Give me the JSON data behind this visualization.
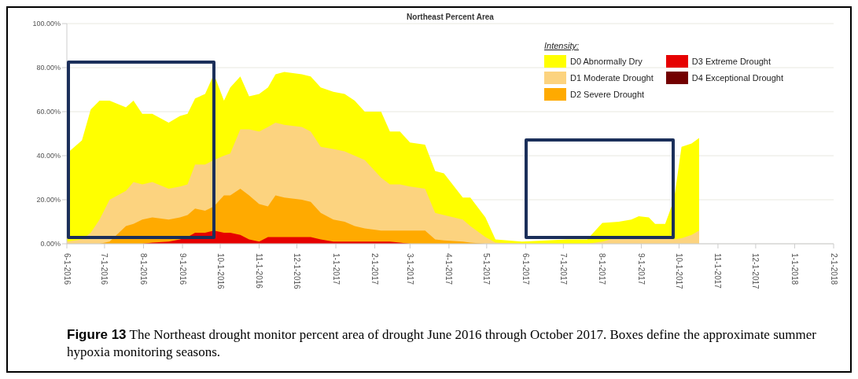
{
  "chart_data": {
    "type": "area",
    "title": "Northeast Percent Area",
    "x": [
      "2016-06-01",
      "2016-06-13",
      "2016-06-20",
      "2016-06-27",
      "2016-07-05",
      "2016-07-18",
      "2016-07-24",
      "2016-07-31",
      "2016-08-08",
      "2016-08-21",
      "2016-08-30",
      "2016-09-05",
      "2016-09-11",
      "2016-09-19",
      "2016-09-26",
      "2016-10-04",
      "2016-10-09",
      "2016-10-17",
      "2016-10-24",
      "2016-11-01",
      "2016-11-08",
      "2016-11-14",
      "2016-11-21",
      "2016-12-05",
      "2016-12-12",
      "2016-12-20",
      "2016-12-30",
      "2017-01-08",
      "2017-01-16",
      "2017-01-24",
      "2017-02-06",
      "2017-02-13",
      "2017-02-21",
      "2017-03-01",
      "2017-03-13",
      "2017-03-21",
      "2017-03-28",
      "2017-04-12",
      "2017-04-18",
      "2017-04-30",
      "2017-05-08",
      "2017-05-29",
      "2017-07-04",
      "2017-07-20",
      "2017-08-01",
      "2017-08-14",
      "2017-08-24",
      "2017-08-30",
      "2017-09-07",
      "2017-09-12",
      "2017-09-20",
      "2017-09-27",
      "2017-10-03",
      "2017-10-11",
      "2017-10-17"
    ],
    "series": [
      {
        "name": "D0 Abnormally Dry",
        "color": "#ffff00",
        "values": [
          41,
          47,
          61,
          65,
          65,
          62,
          65,
          59,
          59,
          55,
          58,
          59,
          66,
          68,
          77,
          65,
          71,
          76,
          67,
          68,
          71,
          77,
          78,
          77,
          76,
          71,
          69,
          68,
          65,
          60,
          60,
          51,
          51,
          46,
          45,
          33,
          32,
          21,
          21,
          12,
          2,
          1,
          2,
          2,
          9.5,
          10,
          11,
          12.5,
          12,
          9,
          9,
          20,
          44,
          45.5,
          48
        ]
      },
      {
        "name": "D1 Moderate Drought",
        "color": "#fcd37f",
        "values": [
          1,
          2,
          5,
          11,
          20,
          24,
          28,
          27,
          28,
          25,
          26,
          27,
          36,
          36,
          38,
          40,
          41,
          52,
          52,
          51,
          53,
          55,
          54,
          53,
          51,
          44,
          43,
          42,
          40,
          38,
          30,
          27,
          27,
          26,
          25,
          14,
          13,
          11,
          8,
          3,
          0.5,
          0,
          0,
          0,
          1,
          3,
          3,
          3,
          3,
          3,
          3,
          2,
          2.5,
          4,
          6
        ]
      },
      {
        "name": "D2 Severe Drought",
        "color": "#ffaa00",
        "values": [
          0,
          0,
          0,
          0,
          1,
          8,
          9,
          11,
          12,
          11,
          12,
          13,
          16,
          15,
          17,
          22,
          22,
          25,
          22,
          18,
          17,
          22,
          21,
          20,
          19,
          14,
          11,
          10,
          8,
          7,
          6,
          6,
          6,
          6,
          6,
          2,
          1.5,
          1,
          0.5,
          0,
          0,
          0,
          0,
          0,
          0,
          0,
          0,
          0,
          0,
          0,
          0,
          0,
          0,
          0,
          0
        ]
      },
      {
        "name": "D3 Extreme Drought",
        "color": "#e60000",
        "values": [
          0,
          0,
          0,
          0,
          0,
          0,
          0,
          0,
          0.5,
          1,
          2,
          3,
          5,
          5,
          6,
          5,
          5,
          4,
          2,
          1,
          3,
          3,
          3,
          3,
          3,
          2,
          1,
          1,
          1,
          1,
          1,
          1,
          0.5,
          0,
          0,
          0,
          0,
          0,
          0,
          0,
          0,
          0,
          0,
          0,
          0,
          0,
          0,
          0,
          0,
          0,
          0,
          0,
          0,
          0,
          0
        ]
      },
      {
        "name": "D4 Exceptional Drought",
        "color": "#730000",
        "values": [
          null,
          null,
          null,
          null,
          null,
          null,
          null,
          null,
          null,
          null,
          null,
          null,
          null,
          null,
          null,
          null,
          null,
          null,
          null,
          null,
          null,
          null,
          null,
          null,
          null,
          null,
          null,
          null,
          null,
          null,
          null,
          null,
          null,
          null,
          null,
          null,
          null,
          null,
          null,
          null,
          null,
          null,
          null,
          null,
          null,
          null,
          null,
          null,
          null,
          null,
          null,
          null,
          null,
          null,
          null
        ]
      }
    ],
    "xlim": [
      "2016-06-01",
      "2018-02-01"
    ],
    "xticks": [
      {
        "value": "2016-06-01",
        "label": "6-1-2016"
      },
      {
        "value": "2016-07-01",
        "label": "7-1-2016"
      },
      {
        "value": "2016-08-01",
        "label": "8-1-2016"
      },
      {
        "value": "2016-09-01",
        "label": "9-1-2016"
      },
      {
        "value": "2016-10-01",
        "label": "10-1-2016"
      },
      {
        "value": "2016-11-01",
        "label": "11-1-2016"
      },
      {
        "value": "2016-12-01",
        "label": "12-1-2016"
      },
      {
        "value": "2017-01-01",
        "label": "1-1-2017"
      },
      {
        "value": "2017-02-01",
        "label": "2-1-2017"
      },
      {
        "value": "2017-03-01",
        "label": "3-1-2017"
      },
      {
        "value": "2017-04-01",
        "label": "4-1-2017"
      },
      {
        "value": "2017-05-01",
        "label": "5-1-2017"
      },
      {
        "value": "2017-06-01",
        "label": "6-1-2017"
      },
      {
        "value": "2017-07-01",
        "label": "7-1-2017"
      },
      {
        "value": "2017-08-01",
        "label": "8-1-2017"
      },
      {
        "value": "2017-09-01",
        "label": "9-1-2017"
      },
      {
        "value": "2017-10-01",
        "label": "10-1-2017"
      },
      {
        "value": "2017-11-01",
        "label": "11-1-2017"
      },
      {
        "value": "2017-12-01",
        "label": "12-1-2017"
      },
      {
        "value": "2018-01-01",
        "label": "1-1-2018"
      },
      {
        "value": "2018-02-01",
        "label": "2-1-2018"
      }
    ],
    "ylim": [
      0,
      100
    ],
    "yticks": [
      {
        "value": 0,
        "label": "0.00%"
      },
      {
        "value": 20,
        "label": "20.00%"
      },
      {
        "value": 40,
        "label": "40.00%"
      },
      {
        "value": 60,
        "label": "60.00%"
      },
      {
        "value": 80,
        "label": "80.00%"
      },
      {
        "value": 100,
        "label": "100.00%"
      }
    ],
    "grid": "y",
    "legend": "top right",
    "legend_title": "Intensity:",
    "annotations": [
      "Figure 13",
      "The Northeast drought monitor percent area of drought June 2016 through October 2017. Boxes define the approximate summer hypoxia monitoring seasons."
    ]
  }
}
